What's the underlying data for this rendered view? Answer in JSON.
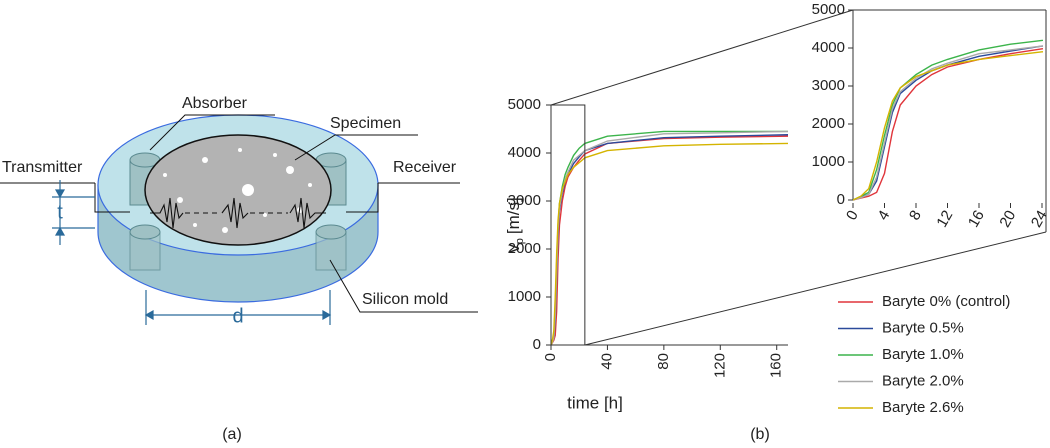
{
  "diagram": {
    "absorber": "Absorber",
    "specimen": "Specimen",
    "transmitter": "Transmitter",
    "receiver": "Receiver",
    "thickness": "t",
    "diameter": "d",
    "mold": "Silicon mold"
  },
  "panel_labels": [
    "(a)",
    "(b)"
  ],
  "chart_data": [
    {
      "type": "line",
      "xlabel": "time [h]",
      "ylabel": {
        "symbol": "v",
        "subscript": "p",
        "unit": "[m/s]"
      },
      "x": [
        0,
        1,
        2,
        3,
        4,
        5,
        6,
        8,
        10,
        12,
        16,
        20,
        24,
        40,
        80,
        120,
        168
      ],
      "series": [
        {
          "name": "Baryte 0% (control)",
          "color": "#e0353b",
          "values": [
            0,
            50,
            100,
            200,
            700,
            1800,
            2500,
            3000,
            3300,
            3500,
            3700,
            3850,
            3980,
            4200,
            4300,
            4330,
            4350
          ]
        },
        {
          "name": "Baryte 0.5%",
          "color": "#2b4a9b",
          "values": [
            0,
            80,
            150,
            500,
            1400,
            2300,
            2800,
            3150,
            3400,
            3550,
            3780,
            3920,
            4050,
            4200,
            4320,
            4350,
            4380
          ]
        },
        {
          "name": "Baryte 1.0%",
          "color": "#3cb44b",
          "values": [
            0,
            100,
            200,
            800,
            1700,
            2500,
            2950,
            3300,
            3550,
            3700,
            3950,
            4100,
            4200,
            4350,
            4450,
            4450,
            4450
          ]
        },
        {
          "name": "Baryte 2.0%",
          "color": "#aaaaaa",
          "values": [
            0,
            60,
            150,
            600,
            1500,
            2400,
            2850,
            3200,
            3450,
            3600,
            3850,
            3950,
            4050,
            4250,
            4400,
            4420,
            4450
          ]
        },
        {
          "name": "Baryte 2.6%",
          "color": "#d4b400",
          "values": [
            0,
            100,
            300,
            1000,
            1900,
            2600,
            2950,
            3250,
            3400,
            3550,
            3700,
            3800,
            3900,
            4050,
            4150,
            4180,
            4200
          ]
        }
      ],
      "xlim": [
        0,
        168
      ],
      "xticks": [
        0,
        40,
        80,
        120,
        160
      ],
      "ylim": [
        0,
        5000
      ],
      "yticks": [
        0,
        1000,
        2000,
        3000,
        4000,
        5000
      ],
      "legend": "lower right"
    },
    {
      "type": "inset",
      "xlim": [
        0,
        24
      ],
      "xticks": [
        0,
        4,
        8,
        12,
        16,
        20,
        24
      ],
      "ylim": [
        0,
        5000
      ],
      "yticks": [
        0,
        1000,
        2000,
        3000,
        4000,
        5000
      ]
    }
  ]
}
